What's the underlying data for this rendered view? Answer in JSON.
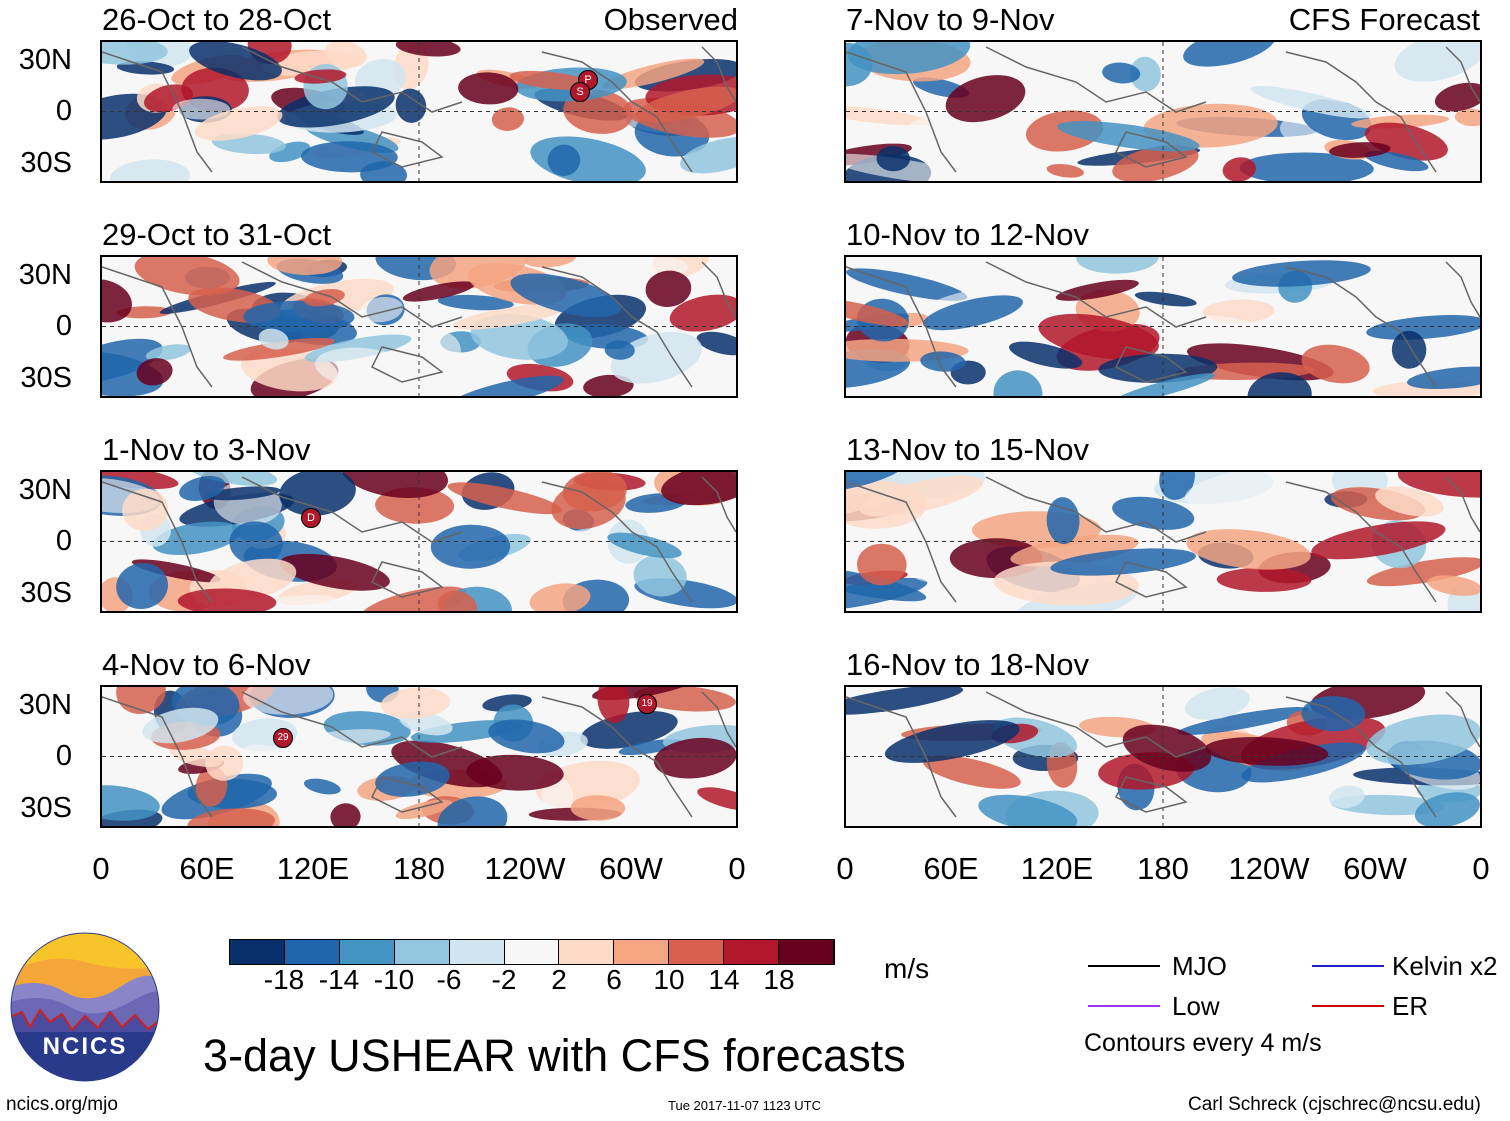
{
  "header": {
    "observed_label": "Observed",
    "forecast_label": "CFS Forecast"
  },
  "panels_left": [
    {
      "title": "26-Oct to 28-Oct"
    },
    {
      "title": "29-Oct to 31-Oct"
    },
    {
      "title": "1-Nov to 3-Nov"
    },
    {
      "title": "4-Nov to 6-Nov"
    }
  ],
  "panels_right": [
    {
      "title": "7-Nov to 9-Nov"
    },
    {
      "title": "10-Nov to 12-Nov"
    },
    {
      "title": "13-Nov to 15-Nov"
    },
    {
      "title": "16-Nov to 18-Nov"
    }
  ],
  "axes": {
    "lat_labels": [
      "30N",
      "0",
      "30S"
    ],
    "lon_labels": [
      "0",
      "60E",
      "120E",
      "180",
      "120W",
      "60W",
      "0"
    ]
  },
  "storm_markers": {
    "panel1_a": "P",
    "panel1_b": "S",
    "panel3": "D",
    "panel4_a": "29",
    "panel4_b": "19"
  },
  "colorbar": {
    "colors": [
      "#08306b",
      "#2166ac",
      "#4393c3",
      "#92c5de",
      "#d1e5f0",
      "#f7f7f7",
      "#fddbc7",
      "#f4a582",
      "#d6604d",
      "#b2182b",
      "#67001f"
    ],
    "labels": [
      "-18",
      "-14",
      "-10",
      "-6",
      "-2",
      "2",
      "6",
      "10",
      "14",
      "18"
    ],
    "units": "m/s"
  },
  "legend": {
    "items": [
      {
        "label": "MJO",
        "color": "#000000"
      },
      {
        "label": "Kelvin x2",
        "color": "#2222cc"
      },
      {
        "label": "Low",
        "color": "#9933ff"
      },
      {
        "label": "ER",
        "color": "#cc0000"
      }
    ],
    "note": "Contours every 4 m/s"
  },
  "title": "3-day USHEAR with CFS forecasts",
  "logo_text": "NCICS",
  "footer": {
    "url": "ncics.org/mjo",
    "timestamp": "Tue 2017-11-07 1123 UTC",
    "credit": "Carl Schreck (cjschrec@ncsu.edu)"
  }
}
